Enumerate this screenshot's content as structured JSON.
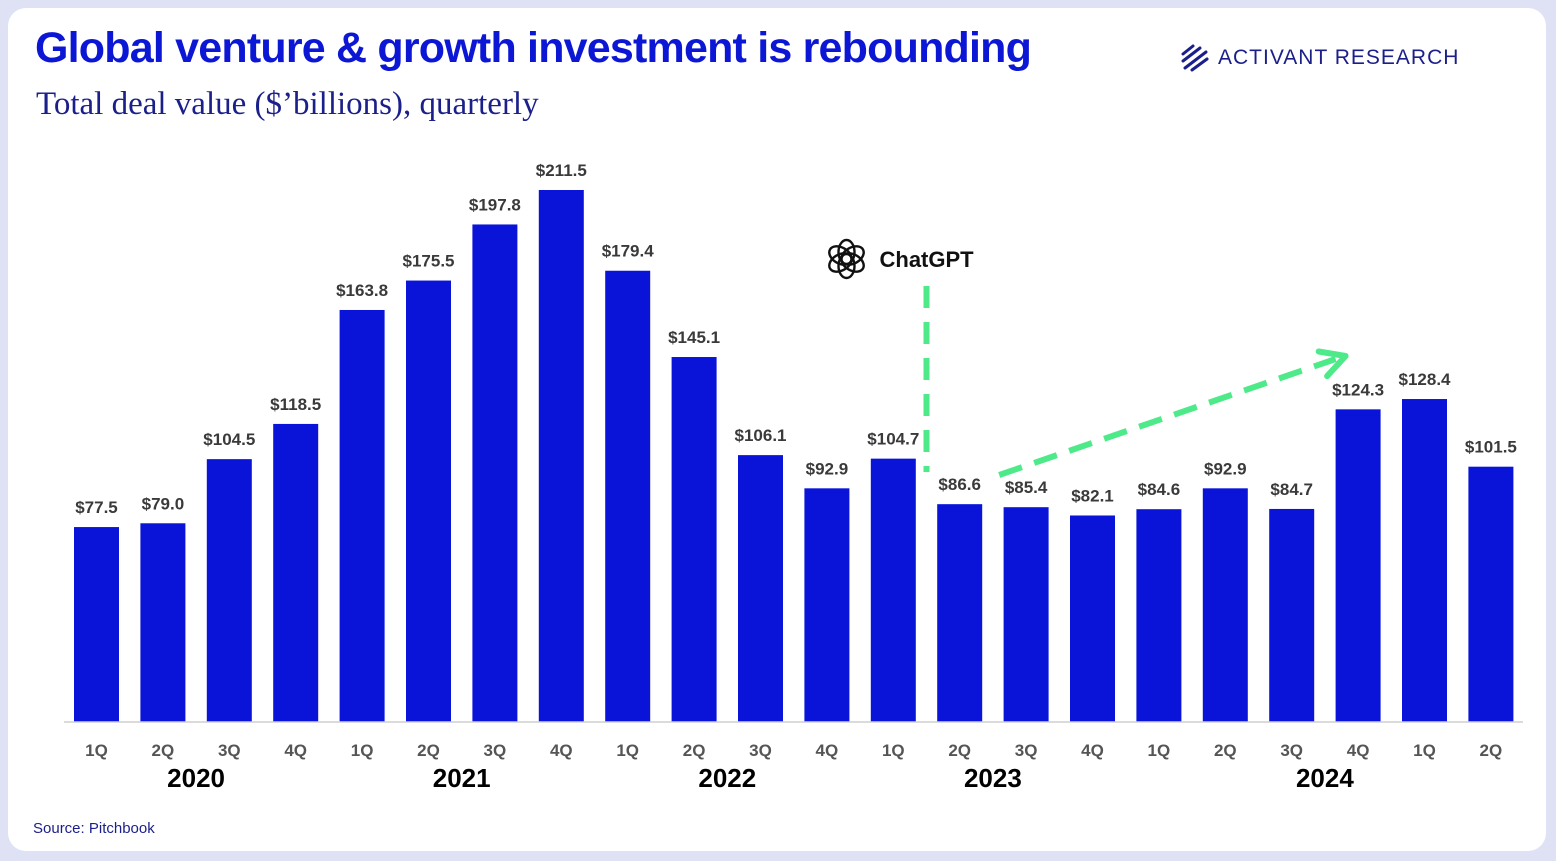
{
  "header": {
    "title": "Global venture & growth investment is rebounding",
    "subtitle": "Total deal value ($’billions), quarterly",
    "brand_bold": "ACTIVANT",
    "brand_rest": " RESEARCH",
    "brand_icon": "activant-stripes-logo"
  },
  "footer": {
    "source": "Source: Pitchbook"
  },
  "colors": {
    "bar": "#0a14d9",
    "accent": "#4eea8a",
    "title": "#0c17d6"
  },
  "chart_data": {
    "type": "bar",
    "title": "Global venture & growth investment is rebounding",
    "subtitle": "Total deal value ($’billions), quarterly",
    "categories": [
      "1Q",
      "2Q",
      "3Q",
      "4Q",
      "1Q",
      "2Q",
      "3Q",
      "4Q",
      "1Q",
      "2Q",
      "3Q",
      "4Q",
      "1Q",
      "2Q",
      "3Q",
      "4Q",
      "1Q",
      "2Q",
      "3Q",
      "4Q",
      "1Q",
      "2Q"
    ],
    "values": [
      77.5,
      79.0,
      104.5,
      118.5,
      163.8,
      175.5,
      197.8,
      211.5,
      179.4,
      145.1,
      106.1,
      92.9,
      104.7,
      86.6,
      85.4,
      82.1,
      84.6,
      92.9,
      84.7,
      124.3,
      128.4,
      101.5
    ],
    "value_labels": [
      "$77.5",
      "$79.0",
      "$104.5",
      "$118.5",
      "$163.8",
      "$175.5",
      "$197.8",
      "$211.5",
      "$179.4",
      "$145.1",
      "$106.1",
      "$92.9",
      "$104.7",
      "$86.6",
      "$85.4",
      "$82.1",
      "$84.6",
      "$92.9",
      "$84.7",
      "$124.3",
      "$128.4",
      "$101.5"
    ],
    "year_groups": [
      {
        "label": "2020",
        "first": 0,
        "last": 3
      },
      {
        "label": "2021",
        "first": 4,
        "last": 7
      },
      {
        "label": "2022",
        "first": 8,
        "last": 11
      },
      {
        "label": "2023",
        "first": 12,
        "last": 15
      },
      {
        "label": "2024",
        "first": 16,
        "last": 21
      }
    ],
    "ylim": [
      0,
      211.5
    ],
    "grid": false,
    "legend": "none",
    "annotations": [
      {
        "text": "ChatGPT",
        "icon": "openai-logo-icon",
        "between_bars": [
          12,
          13
        ],
        "style": "dashed vertical line"
      },
      {
        "style": "dashed trend arrow",
        "from_bar": 13,
        "to_bar": 19
      }
    ]
  }
}
